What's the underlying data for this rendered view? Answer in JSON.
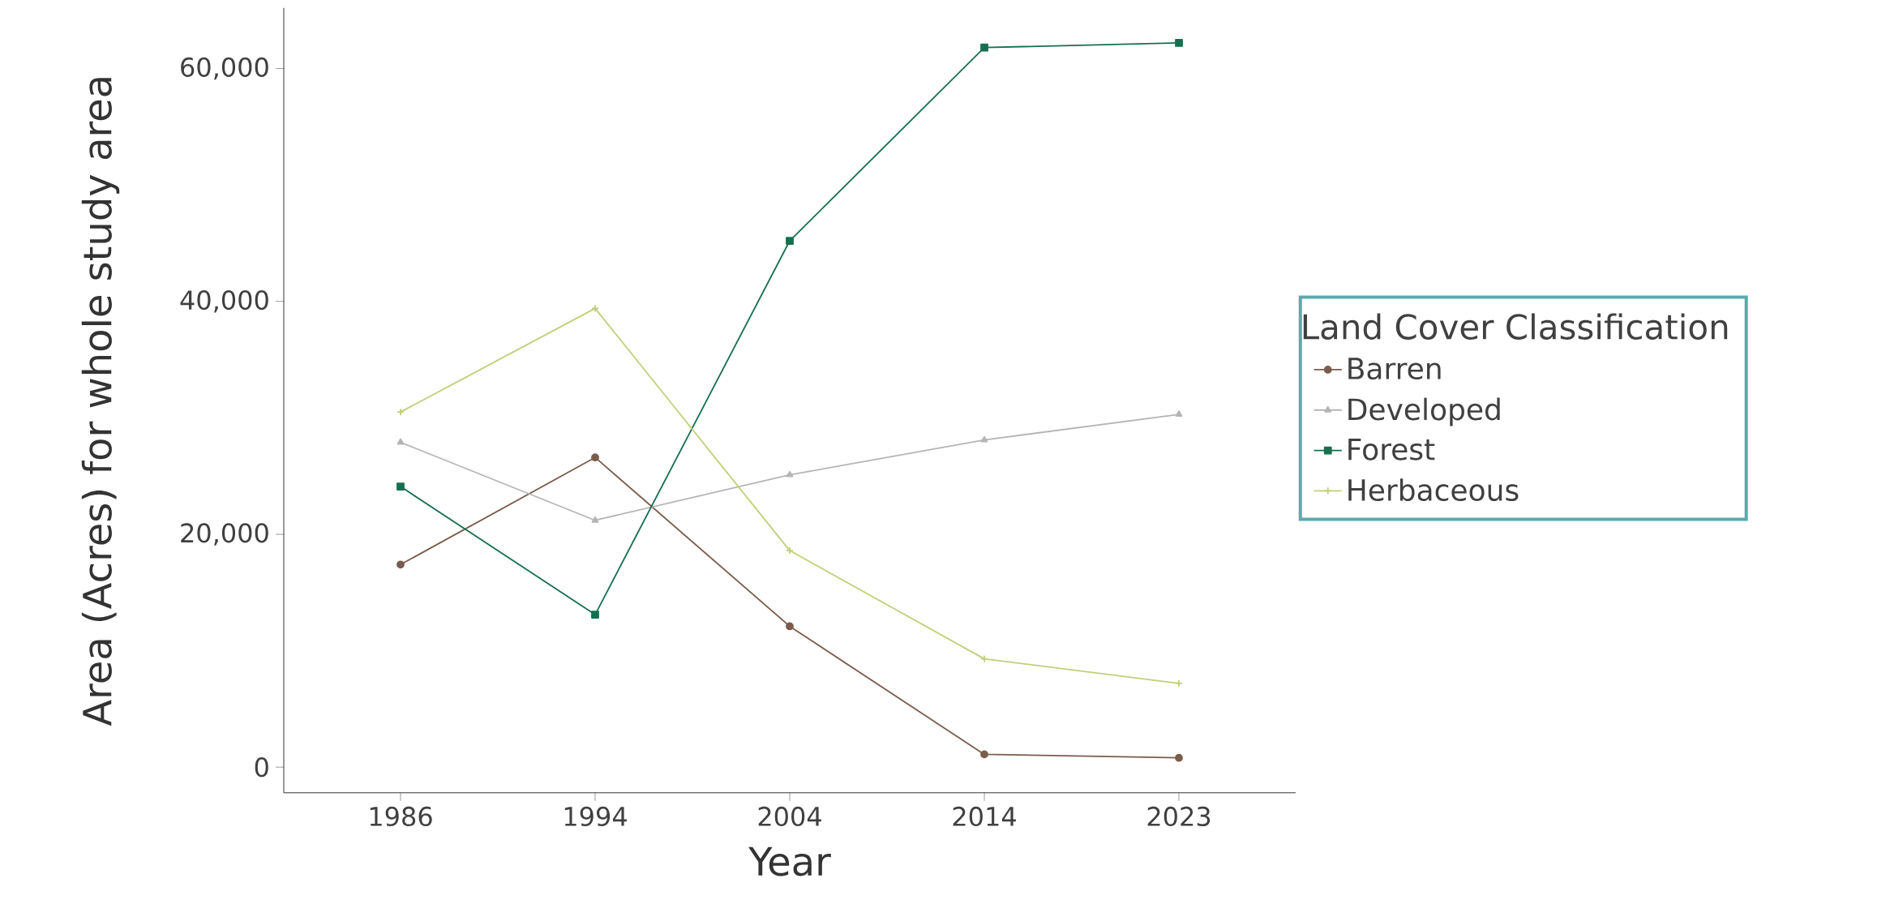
{
  "chart_data": {
    "type": "line",
    "xlabel": "Year",
    "ylabel": "Area (Acres) for whole study area",
    "legend_title": "Land Cover Classification",
    "categories": [
      "1986",
      "1994",
      "2004",
      "2014",
      "2023"
    ],
    "series": [
      {
        "name": "Barren",
        "color": "#7b5c4c",
        "marker": "circle",
        "values": [
          17400,
          26600,
          12100,
          1100,
          800
        ]
      },
      {
        "name": "Developed",
        "color": "#b5b5b5",
        "marker": "triangle",
        "values": [
          27900,
          21200,
          25100,
          28100,
          30300
        ]
      },
      {
        "name": "Forest",
        "color": "#16704f",
        "marker": "square",
        "values": [
          24100,
          13100,
          45200,
          61800,
          62200
        ]
      },
      {
        "name": "Herbaceous",
        "color": "#c0cf7a",
        "marker": "cross",
        "values": [
          30500,
          39400,
          18600,
          9300,
          7200
        ]
      }
    ],
    "ylim": [
      -2200,
      65200
    ],
    "yticks": [
      {
        "value": 0,
        "label": "0"
      },
      {
        "value": 20000,
        "label": "20,000"
      },
      {
        "value": 40000,
        "label": "40,000"
      },
      {
        "value": 60000,
        "label": "60,000"
      }
    ],
    "grid": false,
    "legend": "right",
    "line_style": "solid"
  }
}
